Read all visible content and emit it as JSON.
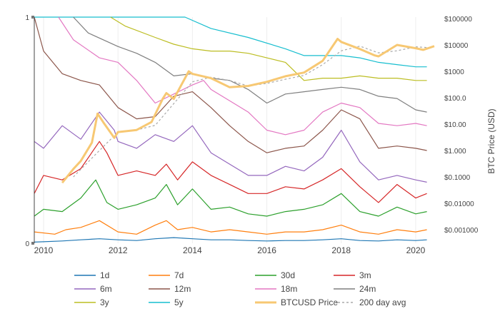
{
  "chart_data": {
    "type": "line",
    "title": "",
    "xlabel": "",
    "ylabel_left": "",
    "ylabel_right": "BTC Price (USD)",
    "x_ticks": [
      "2010",
      "2012",
      "2014",
      "2016",
      "2018",
      "2020"
    ],
    "y_left_ticks": [
      "0",
      "1"
    ],
    "y_left_range": [
      0,
      1
    ],
    "y_right_ticks": [
      "$0.001000",
      "$0.01000",
      "$0.1000",
      "$1.000",
      "$10.00",
      "$100.0",
      "$1000",
      "$10000",
      "$100000"
    ],
    "y_right_range": [
      0.001,
      100000
    ],
    "y_right_scale": "log",
    "x_range": [
      2009.75,
      2020.5
    ],
    "grid": true,
    "legend_placement": "bottom",
    "series": [
      {
        "name": "1d",
        "axis": "left",
        "color": "#1f77b4",
        "x": [
          2009.75,
          2010.5,
          2011.0,
          2011.5,
          2012.0,
          2012.5,
          2013.0,
          2013.5,
          2014.0,
          2014.5,
          2015.0,
          2015.5,
          2016.0,
          2016.5,
          2017.0,
          2017.5,
          2018.0,
          2018.5,
          2019.0,
          2019.5,
          2020.0,
          2020.3
        ],
        "values": [
          0.005,
          0.01,
          0.015,
          0.02,
          0.015,
          0.012,
          0.02,
          0.025,
          0.02,
          0.015,
          0.015,
          0.012,
          0.01,
          0.012,
          0.012,
          0.015,
          0.02,
          0.012,
          0.01,
          0.015,
          0.012,
          0.015
        ]
      },
      {
        "name": "7d",
        "axis": "left",
        "color": "#ff7f0e",
        "x": [
          2009.75,
          2010.3,
          2010.6,
          2011.0,
          2011.5,
          2012.0,
          2012.5,
          2013.0,
          2013.3,
          2013.6,
          2014.0,
          2014.5,
          2015.0,
          2015.5,
          2016.0,
          2016.5,
          2017.0,
          2017.5,
          2018.0,
          2018.5,
          2019.0,
          2019.5,
          2020.0,
          2020.3
        ],
        "values": [
          0.05,
          0.04,
          0.06,
          0.07,
          0.1,
          0.05,
          0.04,
          0.08,
          0.1,
          0.06,
          0.07,
          0.05,
          0.06,
          0.05,
          0.04,
          0.05,
          0.05,
          0.06,
          0.08,
          0.05,
          0.04,
          0.06,
          0.05,
          0.06
        ]
      },
      {
        "name": "30d",
        "axis": "left",
        "color": "#2ca02c",
        "x": [
          2009.75,
          2010.0,
          2010.5,
          2011.0,
          2011.4,
          2011.7,
          2012.0,
          2012.5,
          2013.0,
          2013.3,
          2013.6,
          2014.0,
          2014.5,
          2015.0,
          2015.5,
          2016.0,
          2016.5,
          2017.0,
          2017.5,
          2018.0,
          2018.5,
          2019.0,
          2019.5,
          2020.0,
          2020.3
        ],
        "values": [
          0.12,
          0.15,
          0.14,
          0.2,
          0.28,
          0.18,
          0.15,
          0.17,
          0.2,
          0.26,
          0.17,
          0.24,
          0.15,
          0.16,
          0.13,
          0.12,
          0.14,
          0.15,
          0.17,
          0.22,
          0.14,
          0.12,
          0.16,
          0.13,
          0.14
        ]
      },
      {
        "name": "3m",
        "axis": "left",
        "color": "#d62728",
        "x": [
          2009.75,
          2010.0,
          2010.5,
          2011.0,
          2011.5,
          2011.7,
          2012.0,
          2012.5,
          2013.0,
          2013.3,
          2013.6,
          2014.0,
          2014.5,
          2015.0,
          2015.5,
          2016.0,
          2016.5,
          2017.0,
          2017.5,
          2018.0,
          2018.5,
          2019.0,
          2019.5,
          2020.0,
          2020.3
        ],
        "values": [
          0.22,
          0.3,
          0.28,
          0.33,
          0.45,
          0.4,
          0.3,
          0.32,
          0.3,
          0.35,
          0.28,
          0.36,
          0.3,
          0.26,
          0.22,
          0.22,
          0.25,
          0.24,
          0.28,
          0.33,
          0.25,
          0.18,
          0.26,
          0.2,
          0.22
        ]
      },
      {
        "name": "6m",
        "axis": "left",
        "color": "#9467bd",
        "x": [
          2009.75,
          2010.0,
          2010.5,
          2011.0,
          2011.5,
          2011.9,
          2012.0,
          2012.5,
          2013.0,
          2013.5,
          2014.0,
          2014.5,
          2015.0,
          2015.5,
          2016.0,
          2016.5,
          2017.0,
          2017.5,
          2018.0,
          2018.5,
          2019.0,
          2019.5,
          2020.0,
          2020.3
        ],
        "values": [
          0.45,
          0.42,
          0.52,
          0.46,
          0.58,
          0.5,
          0.45,
          0.42,
          0.48,
          0.45,
          0.52,
          0.4,
          0.35,
          0.3,
          0.3,
          0.34,
          0.32,
          0.38,
          0.5,
          0.36,
          0.28,
          0.3,
          0.28,
          0.27
        ]
      },
      {
        "name": "12m",
        "axis": "left",
        "color": "#8c564b",
        "x": [
          2009.75,
          2010.0,
          2010.5,
          2011.0,
          2011.5,
          2012.0,
          2012.5,
          2013.0,
          2013.5,
          2014.0,
          2014.5,
          2015.0,
          2015.5,
          2016.0,
          2016.5,
          2017.0,
          2017.5,
          2018.0,
          2018.5,
          2019.0,
          2019.5,
          2020.0,
          2020.3
        ],
        "values": [
          1.0,
          0.85,
          0.75,
          0.72,
          0.7,
          0.6,
          0.55,
          0.56,
          0.65,
          0.67,
          0.6,
          0.52,
          0.45,
          0.4,
          0.42,
          0.43,
          0.5,
          0.59,
          0.55,
          0.42,
          0.43,
          0.42,
          0.41
        ]
      },
      {
        "name": "18m",
        "axis": "left",
        "color": "#e377c2",
        "x": [
          2010.4,
          2010.8,
          2011.5,
          2012.0,
          2012.5,
          2013.0,
          2013.5,
          2014.0,
          2014.3,
          2014.5,
          2015.0,
          2015.5,
          2016.0,
          2016.5,
          2017.0,
          2017.5,
          2018.0,
          2018.5,
          2019.0,
          2019.5,
          2020.0,
          2020.3
        ],
        "values": [
          1.0,
          0.9,
          0.82,
          0.8,
          0.72,
          0.62,
          0.66,
          0.7,
          0.72,
          0.68,
          0.63,
          0.58,
          0.5,
          0.48,
          0.5,
          0.58,
          0.62,
          0.6,
          0.53,
          0.52,
          0.53,
          0.52
        ]
      },
      {
        "name": "24m",
        "axis": "left",
        "color": "#7f7f7f",
        "x": [
          2010.8,
          2011.2,
          2012.0,
          2012.5,
          2013.0,
          2013.5,
          2014.0,
          2014.5,
          2015.0,
          2015.5,
          2016.0,
          2016.5,
          2017.0,
          2017.5,
          2018.0,
          2018.5,
          2019.0,
          2019.5,
          2020.0,
          2020.3
        ],
        "values": [
          1.0,
          0.93,
          0.87,
          0.84,
          0.8,
          0.74,
          0.75,
          0.73,
          0.72,
          0.68,
          0.62,
          0.66,
          0.67,
          0.68,
          0.69,
          0.68,
          0.65,
          0.64,
          0.59,
          0.58
        ]
      },
      {
        "name": "3y",
        "axis": "left",
        "color": "#bcbd22",
        "x": [
          2011.8,
          2012.2,
          2013.0,
          2013.5,
          2014.0,
          2014.5,
          2015.0,
          2015.5,
          2016.0,
          2016.5,
          2017.0,
          2017.5,
          2018.0,
          2018.5,
          2019.0,
          2019.5,
          2020.0,
          2020.3
        ],
        "values": [
          1.0,
          0.96,
          0.91,
          0.88,
          0.86,
          0.85,
          0.85,
          0.84,
          0.82,
          0.8,
          0.72,
          0.73,
          0.73,
          0.74,
          0.73,
          0.73,
          0.72,
          0.72
        ]
      },
      {
        "name": "5y",
        "axis": "left",
        "color": "#17becf",
        "x": [
          2009.75,
          2012.5,
          2013.0,
          2013.8,
          2014.5,
          2015.5,
          2016.5,
          2017.0,
          2017.5,
          2018.0,
          2018.5,
          2019.0,
          2019.5,
          2020.0,
          2020.3
        ],
        "values": [
          1.0,
          1.0,
          1.0,
          1.0,
          0.95,
          0.91,
          0.86,
          0.83,
          0.83,
          0.83,
          0.82,
          0.8,
          0.79,
          0.78,
          0.78
        ]
      },
      {
        "name": "BTCUSD Price",
        "axis": "right",
        "color": "#f7c873",
        "x": [
          2010.5,
          2010.8,
          2011.0,
          2011.3,
          2011.45,
          2011.6,
          2011.9,
          2012.0,
          2012.5,
          2012.9,
          2013.2,
          2013.3,
          2013.5,
          2013.9,
          2014.0,
          2014.5,
          2015.0,
          2015.5,
          2016.0,
          2016.5,
          2017.0,
          2017.5,
          2017.9,
          2018.0,
          2018.5,
          2018.9,
          2019.0,
          2019.5,
          2020.0,
          2020.2,
          2020.5
        ],
        "values": [
          0.06,
          0.2,
          0.4,
          2,
          25,
          12,
          3,
          5,
          6,
          12,
          90,
          150,
          90,
          1000,
          800,
          550,
          250,
          280,
          400,
          650,
          900,
          2500,
          17000,
          13000,
          7000,
          4000,
          3700,
          10000,
          7500,
          6500,
          9000
        ]
      },
      {
        "name": "200 day avg",
        "axis": "right",
        "color": "#aaaaaa",
        "dashed": true,
        "x": [
          2010.8,
          2011.5,
          2012.0,
          2012.5,
          2013.0,
          2013.5,
          2014.0,
          2014.5,
          2015.0,
          2015.5,
          2016.0,
          2016.5,
          2017.0,
          2017.5,
          2018.0,
          2018.5,
          2019.0,
          2019.5,
          2020.0,
          2020.3
        ],
        "values": [
          0.1,
          1,
          5,
          6,
          9,
          60,
          400,
          600,
          450,
          280,
          350,
          500,
          700,
          1800,
          6000,
          9000,
          5000,
          6000,
          8500,
          8000
        ]
      }
    ],
    "legend": [
      [
        "1d",
        "7d",
        "30d",
        "3m"
      ],
      [
        "6m",
        "12m",
        "18m",
        "24m"
      ],
      [
        "3y",
        "5y",
        "BTCUSD Price",
        "200 day avg"
      ]
    ]
  }
}
